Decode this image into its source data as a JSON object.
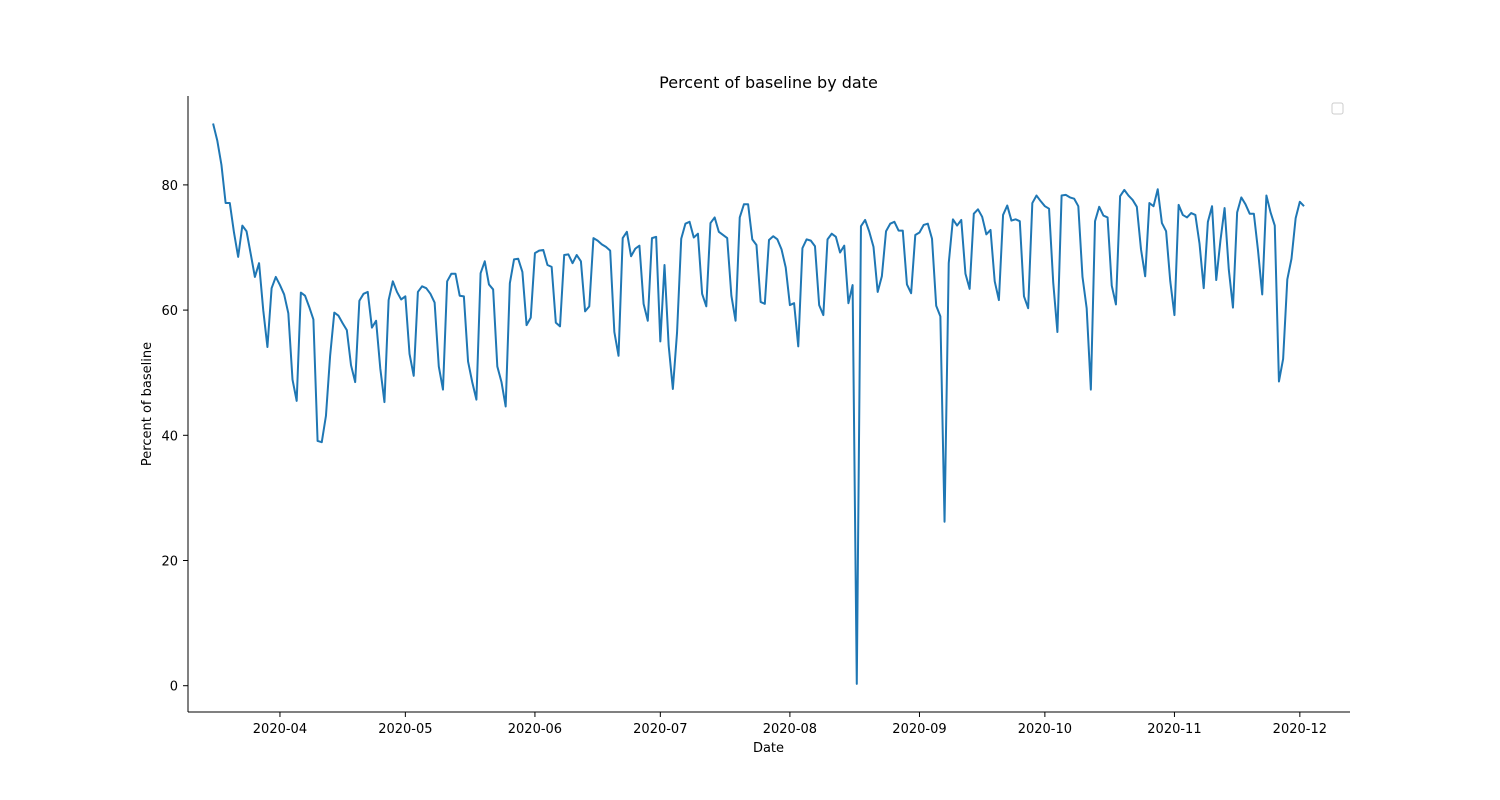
{
  "chart_data": {
    "type": "line",
    "title": "Percent of baseline by date",
    "xlabel": "Date",
    "ylabel": "Percent of baseline",
    "x_start": "2020-03-16",
    "x_end": "2020-12-02",
    "xlim": [
      "2020-03-10",
      "2020-12-13"
    ],
    "ylim": [
      -4.2,
      94.2
    ],
    "yticks": [
      0,
      20,
      40,
      60,
      80
    ],
    "xticks": [
      "2020-04",
      "2020-05",
      "2020-06",
      "2020-07",
      "2020-08",
      "2020-09",
      "2020-10",
      "2020-11",
      "2020-12"
    ],
    "grid": false,
    "legend": "empty, top-right",
    "series": [
      {
        "color": "#1f77b4",
        "values": [
          89.8,
          87.1,
          83.2,
          77.1,
          77.1,
          72.4,
          68.5,
          73.5,
          72.6,
          69.0,
          65.3,
          67.5,
          60.0,
          54.1,
          63.5,
          65.3,
          64.0,
          62.5,
          59.5,
          48.9,
          45.5,
          62.8,
          62.3,
          60.5,
          58.5,
          39.1,
          38.9,
          43.1,
          52.7,
          59.6,
          59.1,
          57.9,
          56.8,
          51.2,
          48.5,
          61.5,
          62.6,
          62.9,
          57.2,
          58.3,
          50.7,
          45.3,
          61.6,
          64.6,
          62.9,
          61.7,
          62.2,
          53.0,
          49.5,
          62.9,
          63.8,
          63.5,
          62.6,
          61.2,
          51.0,
          47.3,
          64.6,
          65.8,
          65.8,
          62.3,
          62.2,
          51.8,
          48.5,
          45.7,
          65.9,
          67.8,
          64.1,
          63.3,
          51.0,
          48.5,
          44.6,
          64.3,
          68.1,
          68.2,
          66.1,
          57.6,
          58.8,
          69.1,
          69.5,
          69.6,
          67.2,
          66.9,
          58.0,
          57.4,
          68.8,
          68.9,
          67.5,
          68.8,
          67.8,
          59.8,
          60.6,
          71.5,
          71.1,
          70.5,
          70.1,
          69.5,
          56.5,
          52.7,
          71.5,
          72.5,
          68.6,
          69.8,
          70.3,
          61.0,
          58.3,
          71.5,
          71.7,
          55.0,
          67.2,
          54.3,
          47.4,
          56.4,
          71.4,
          73.8,
          74.1,
          71.6,
          72.2,
          62.6,
          60.6,
          73.9,
          74.8,
          72.5,
          72.0,
          71.5,
          62.3,
          58.3,
          74.8,
          76.9,
          76.9,
          71.3,
          70.4,
          61.3,
          61.0,
          71.2,
          71.8,
          71.3,
          69.7,
          66.8,
          60.8,
          61.1,
          54.2,
          69.9,
          71.3,
          71.1,
          70.2,
          60.8,
          59.2,
          71.3,
          72.2,
          71.7,
          69.2,
          70.3,
          61.1,
          64.0,
          0.3,
          73.4,
          74.4,
          72.5,
          70.1,
          62.9,
          65.4,
          72.6,
          73.8,
          74.1,
          72.7,
          72.7,
          64.1,
          62.7,
          72.0,
          72.4,
          73.6,
          73.8,
          71.4,
          60.7,
          59.0,
          26.2,
          67.5,
          74.5,
          73.5,
          74.4,
          65.8,
          63.4,
          75.4,
          76.1,
          74.9,
          72.1,
          72.8,
          64.6,
          61.6,
          75.2,
          76.7,
          74.3,
          74.5,
          74.2,
          62.2,
          60.3,
          77.1,
          78.3,
          77.4,
          76.6,
          76.2,
          64.4,
          56.5,
          78.3,
          78.4,
          78.0,
          77.8,
          76.6,
          65.3,
          60.3,
          47.3,
          74.2,
          76.5,
          75.1,
          74.8,
          63.9,
          60.9,
          78.2,
          79.2,
          78.3,
          77.6,
          76.5,
          69.7,
          65.4,
          77.1,
          76.6,
          79.3,
          73.9,
          72.6,
          64.6,
          59.2,
          76.8,
          75.2,
          74.8,
          75.5,
          75.2,
          70.6,
          63.5,
          74.1,
          76.6,
          64.8,
          71.1,
          76.3,
          66.5,
          60.4,
          75.6,
          78.0,
          76.9,
          75.4,
          75.4,
          69.5,
          62.5,
          78.3,
          75.6,
          73.5,
          48.6,
          52.2,
          64.9,
          68.2,
          74.7,
          77.3,
          76.6
        ]
      }
    ]
  }
}
